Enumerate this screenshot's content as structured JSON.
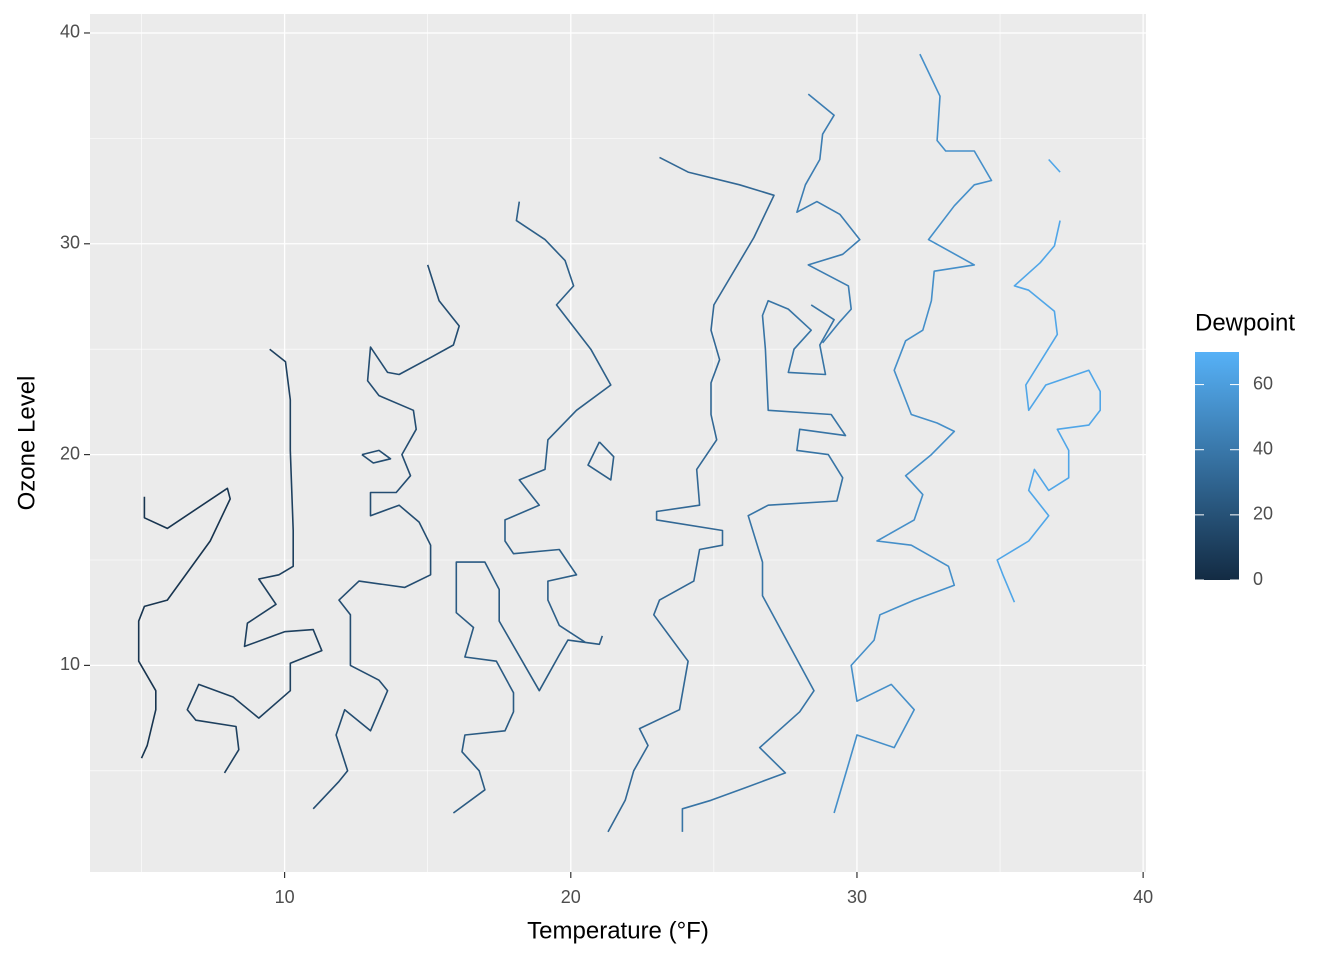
{
  "chart_data": {
    "type": "contour",
    "x_label": "Temperature (°F)",
    "y_label": "Ozone Level",
    "legend_title": "Dewpoint",
    "xlim": [
      3.2,
      40.1
    ],
    "ylim": [
      0.2,
      40.9
    ],
    "xticks": [
      10,
      20,
      30,
      40
    ],
    "yticks": [
      10,
      20,
      30,
      40
    ],
    "x_minor_grid": [
      5,
      15,
      25,
      35
    ],
    "y_minor_grid": [
      5,
      15,
      25,
      35
    ],
    "grid": true,
    "colorbar": {
      "colors": [
        "#132B43",
        "#56B1F7"
      ],
      "lim": [
        0,
        70
      ],
      "ticks": [
        0,
        20,
        40,
        60
      ]
    },
    "series": [
      {
        "level": 5,
        "x": [
          5.1,
          5.1,
          5.9,
          8,
          8.1,
          7.4,
          5.9,
          5.1,
          4.9,
          4.9,
          5.5,
          5.5,
          5.2,
          5
        ],
        "y": [
          18,
          17,
          16.5,
          18.4,
          17.9,
          15.9,
          13.1,
          12.8,
          12.1,
          10.2,
          8.8,
          7.9,
          6.2,
          5.6
        ]
      },
      {
        "level": 11,
        "x": [
          9.48,
          10.03,
          10.2,
          10.2,
          10.3,
          10.3,
          9.8,
          9.1,
          9.7,
          8.7,
          8.6,
          10,
          11,
          11.3,
          10.2,
          10.2,
          9.1,
          8.2,
          7,
          6.6,
          6.9,
          8.3,
          8.4,
          7.9
        ],
        "y": [
          25,
          24.4,
          22.6,
          20.2,
          16.4,
          14.7,
          14.3,
          14.1,
          12.9,
          12,
          10.9,
          11.6,
          11.7,
          10.7,
          10.1,
          8.8,
          7.5,
          8.5,
          9.1,
          7.9,
          7.4,
          7.1,
          6,
          4.9
        ]
      },
      {
        "level": 18,
        "x": [
          15,
          15.4,
          16.1,
          15.9,
          15.1,
          14,
          13.6,
          13.3,
          13,
          12.9,
          13.3,
          14.5,
          14.6,
          14.1,
          14.4,
          13.9,
          13,
          13,
          14,
          14.7,
          15.1,
          15.1,
          14.2,
          12.6,
          11.9,
          12.3,
          12.3,
          13.3,
          13.6,
          13,
          12.1,
          11.8,
          12.2,
          11.9,
          11
        ],
        "y": [
          29,
          27.3,
          26.1,
          25.2,
          24.6,
          23.8,
          23.9,
          24.5,
          25.1,
          23.5,
          22.8,
          22.1,
          21.2,
          20,
          19,
          18.2,
          18.2,
          17.1,
          17.6,
          16.8,
          15.7,
          14.3,
          13.7,
          14,
          13.1,
          12.4,
          10,
          9.3,
          8.8,
          6.9,
          7.9,
          6.7,
          5,
          4.5,
          3.2
        ]
      },
      {
        "level": 18,
        "x": [
          12.7,
          13.3,
          13.7,
          13.1,
          12.7
        ],
        "y": [
          20,
          20.2,
          19.8,
          19.6,
          20
        ]
      },
      {
        "level": 25,
        "x": [
          15.9,
          17,
          16.8,
          16.2,
          16.3,
          17.7,
          18,
          18,
          17.4,
          16.3,
          16.6,
          16,
          16,
          17,
          17.5,
          17.5,
          18.9,
          19.6,
          19.9,
          21,
          21.1
        ],
        "y": [
          3,
          4.1,
          5,
          5.9,
          6.7,
          6.9,
          7.8,
          8.7,
          10.2,
          10.4,
          11.8,
          12.5,
          14.9,
          14.9,
          13.6,
          12.1,
          8.8,
          10.5,
          11.2,
          11,
          11.4
        ]
      },
      {
        "level": 27,
        "x": [
          18.2,
          18.1,
          19.1,
          19.8,
          20.1,
          19.5,
          20.7,
          21.4,
          20.2,
          19.2,
          19.1,
          18.2,
          18.9,
          17.7,
          17.7,
          18,
          19.6,
          20.2,
          19.2,
          19.2,
          19.6,
          20.5
        ],
        "y": [
          32,
          31.1,
          30.2,
          29.2,
          28,
          27.1,
          25,
          23.3,
          22.1,
          20.7,
          19.3,
          18.8,
          17.6,
          16.9,
          15.9,
          15.3,
          15.5,
          14.3,
          14,
          13.1,
          11.9,
          11.1
        ]
      },
      {
        "level": 27,
        "x": [
          21,
          21.5,
          21.4,
          20.6,
          21
        ],
        "y": [
          20.6,
          19.9,
          18.8,
          19.5,
          20.6
        ]
      },
      {
        "level": 32,
        "x": [
          23.1,
          24.1,
          25.9,
          27.1,
          26.4,
          25,
          24.9,
          25.2,
          24.9,
          24.9,
          25.1,
          24.4,
          24.5,
          23,
          23,
          25.3,
          25.3,
          24.5,
          24.3,
          23.1,
          22.9,
          24.1,
          23.8,
          22.4,
          22.7,
          22.2,
          21.9,
          21.3
        ],
        "y": [
          34.1,
          33.4,
          32.8,
          32.3,
          30.3,
          27.1,
          25.9,
          24.5,
          23.4,
          21.9,
          20.7,
          19.3,
          17.6,
          17.3,
          16.9,
          16.4,
          15.7,
          15.5,
          14,
          13.1,
          12.4,
          10.2,
          7.9,
          7,
          6.2,
          5,
          3.6,
          2.1
        ]
      },
      {
        "level": 38,
        "x": [
          23.9,
          23.9,
          24.9,
          26.1,
          27.5,
          26.6,
          28,
          28.5,
          28.3,
          26.7,
          26.7,
          26.2,
          26.9,
          29.3,
          29.5,
          29,
          27.9,
          28,
          29.6,
          29.1,
          26.9,
          26.8,
          26.7,
          26.9,
          27.6,
          28.4,
          27.8,
          27.6,
          28.9,
          28.7,
          29.2,
          28.4
        ],
        "y": [
          2.1,
          3.2,
          3.6,
          4.2,
          4.9,
          6.1,
          7.8,
          8.8,
          9.3,
          13.3,
          14.9,
          17.1,
          17.6,
          17.8,
          18.9,
          20,
          20.2,
          21.2,
          20.9,
          21.9,
          22.1,
          25,
          26.6,
          27.3,
          26.9,
          25.9,
          25,
          23.9,
          23.8,
          25.2,
          26.4,
          27.1
        ]
      },
      {
        "level": 43,
        "x": [
          28.3,
          29.2,
          28.8,
          28.7,
          28.2,
          27.9,
          28.6,
          29.4,
          30.1,
          29.5,
          28.3,
          29.7,
          29.8,
          29.4,
          28.8
        ],
        "y": [
          37.1,
          36.1,
          35.2,
          34,
          32.8,
          31.5,
          32,
          31.4,
          30.2,
          29.5,
          29,
          28,
          26.9,
          26.3,
          25.3
        ]
      },
      {
        "level": 52,
        "x": [
          32.2,
          32.9,
          32.8,
          33.1,
          34.1,
          34.7,
          34.1,
          33.4,
          32.5,
          34.1,
          32.7,
          32.6,
          32.3,
          31.7,
          31.3,
          31.9,
          32.8,
          33.4,
          32.6,
          31.7,
          32.3,
          32,
          30.7,
          31.9,
          33.2,
          33.4,
          32,
          30.8,
          30.6,
          29.8,
          30,
          31.2,
          32,
          31.3,
          30,
          29.7,
          29.2
        ],
        "y": [
          39,
          37,
          34.9,
          34.4,
          34.4,
          33,
          32.8,
          31.8,
          30.2,
          29,
          28.7,
          27.3,
          25.9,
          25.4,
          24,
          21.9,
          21.5,
          21.1,
          20,
          19,
          18.1,
          16.9,
          15.9,
          15.7,
          14.7,
          13.8,
          13.1,
          12.4,
          11.2,
          10,
          8.3,
          9.1,
          7.9,
          6.1,
          6.7,
          5.3,
          3
        ]
      },
      {
        "level": 64,
        "x": [
          37.1,
          36.9,
          36.4,
          35.5,
          36,
          36.9,
          37,
          35.9,
          36,
          36.6,
          38.1,
          38.5,
          38.5,
          38.1,
          37,
          37.4,
          37.4,
          36.7,
          36.2,
          36,
          36.7,
          36,
          34.9,
          35.1,
          35.5
        ],
        "y": [
          31.1,
          29.9,
          29.1,
          28,
          27.8,
          26.8,
          25.7,
          23.3,
          22.1,
          23.3,
          24,
          23,
          22.1,
          21.4,
          21.2,
          20.2,
          18.9,
          18.3,
          19.3,
          18.3,
          17.1,
          15.9,
          15,
          14.3,
          13
        ]
      },
      {
        "level": 64,
        "x": [
          36.7,
          37.1
        ],
        "y": [
          34,
          33.4
        ]
      }
    ]
  }
}
